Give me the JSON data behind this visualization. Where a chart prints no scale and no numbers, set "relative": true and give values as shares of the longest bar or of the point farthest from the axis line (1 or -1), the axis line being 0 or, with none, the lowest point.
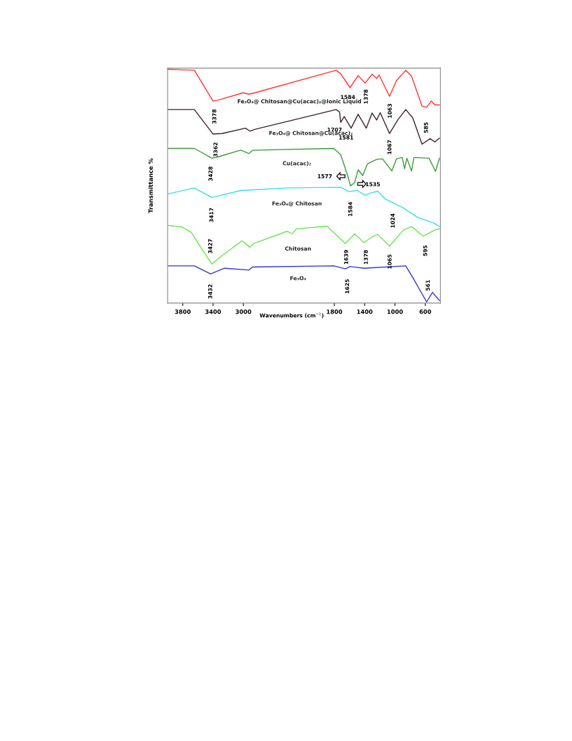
{
  "chart_data": {
    "type": "line",
    "relative": true,
    "xlabel": "Wavenumbers (cm$^{−1}$)",
    "ylabel": "Transmittance %",
    "xlim": [
      4000,
      400
    ],
    "xticks": [
      3800,
      3400,
      3000,
      1800,
      1400,
      1000,
      600
    ],
    "grid": false,
    "legend": false,
    "series": [
      {
        "name": "Fe₃O₄@ Chitosan@Cu(acac)₂@Ionic Liquid",
        "color": "#ff3333",
        "x": [
          4000,
          3647,
          3402,
          3340,
          3003,
          2926,
          2850,
          1777,
          1716,
          1593,
          1486,
          1394,
          1302,
          1241,
          1210,
          1072,
          980,
          858,
          781,
          643,
          582,
          520,
          474,
          413
        ],
        "values": [
          1.0,
          0.996,
          0.864,
          0.867,
          0.899,
          0.893,
          0.899,
          0.996,
          0.981,
          0.921,
          0.973,
          0.941,
          0.979,
          0.961,
          0.976,
          0.884,
          0.951,
          0.996,
          0.971,
          0.842,
          0.837,
          0.864,
          0.847,
          0.847
        ]
      },
      {
        "name": "Fe₃O₄@ Chitosan@Cu(acac)₂",
        "color": "#3d1f2a",
        "x": [
          4000,
          3647,
          3402,
          3279,
          2973,
          2911,
          2850,
          1777,
          1731,
          1716,
          1670,
          1578,
          1486,
          1379,
          1302,
          1241,
          1195,
          1072,
          965,
          858,
          766,
          643,
          536,
          474,
          413
        ],
        "values": [
          0.827,
          0.827,
          0.722,
          0.724,
          0.747,
          0.734,
          0.742,
          0.827,
          0.817,
          0.772,
          0.797,
          0.747,
          0.807,
          0.747,
          0.812,
          0.782,
          0.814,
          0.724,
          0.782,
          0.827,
          0.792,
          0.678,
          0.702,
          0.688,
          0.704
        ]
      },
      {
        "name": "Cu(acac)₂",
        "color": "#3a9a3a",
        "x": [
          4000,
          3647,
          3417,
          3340,
          3034,
          2926,
          2880,
          1807,
          1716,
          1624,
          1587,
          1532,
          1486,
          1425,
          1364,
          1241,
          1164,
          1042,
          980,
          904,
          873,
          843,
          781,
          750,
          551,
          465,
          413
        ],
        "values": [
          0.66,
          0.66,
          0.618,
          0.623,
          0.653,
          0.638,
          0.652,
          0.66,
          0.633,
          0.543,
          0.499,
          0.513,
          0.568,
          0.543,
          0.593,
          0.613,
          0.615,
          0.563,
          0.615,
          0.621,
          0.573,
          0.618,
          0.563,
          0.621,
          0.618,
          0.561,
          0.618
        ]
      },
      {
        "name": "Fe₃O₄@ Chitosan",
        "color": "#33e0e8",
        "x": [
          4000,
          3647,
          3417,
          3034,
          2421,
          1716,
          1609,
          1501,
          1394,
          1318,
          1226,
          1134,
          1042,
          889,
          704,
          490,
          413
        ],
        "values": [
          0.464,
          0.49,
          0.449,
          0.479,
          0.49,
          0.493,
          0.474,
          0.479,
          0.459,
          0.469,
          0.476,
          0.444,
          0.429,
          0.404,
          0.364,
          0.339,
          0.324
        ]
      },
      {
        "name": "Chitosan",
        "color": "#66e64d",
        "x": [
          4000,
          3810,
          3687,
          3564,
          3417,
          3279,
          3018,
          2917,
          2865,
          2421,
          2359,
          2298,
          1899,
          1654,
          1532,
          1409,
          1302,
          1226,
          1072,
          889,
          781,
          628,
          474,
          413
        ],
        "values": [
          0.329,
          0.322,
          0.299,
          0.235,
          0.163,
          0.2,
          0.263,
          0.235,
          0.251,
          0.304,
          0.293,
          0.314,
          0.326,
          0.251,
          0.293,
          0.255,
          0.28,
          0.29,
          0.24,
          0.309,
          0.324,
          0.283,
          0.309,
          0.314
        ]
      },
      {
        "name": "Fe₃O₄",
        "color": "#3333cc",
        "x": [
          4000,
          3647,
          3432,
          3248,
          2926,
          2880,
          1807,
          1654,
          1593,
          1409,
          858,
          766,
          582,
          505,
          413
        ],
        "values": [
          0.155,
          0.155,
          0.12,
          0.145,
          0.137,
          0.15,
          0.155,
          0.142,
          0.152,
          0.145,
          0.155,
          0.105,
          0.0,
          0.041,
          0.006
        ]
      }
    ],
    "annotations": [
      {
        "text": "3378",
        "x": 3378,
        "y": 0.864
      },
      {
        "text": "1584",
        "x": 1584,
        "y": 0.921
      },
      {
        "text": "1378",
        "x": 1378,
        "y": 0.941
      },
      {
        "text": "1063",
        "x": 1063,
        "y": 0.884
      },
      {
        "text": "3362",
        "x": 3362,
        "y": 0.722
      },
      {
        "text": "1707",
        "x": 1707,
        "y": 0.772
      },
      {
        "text": "1581",
        "x": 1581,
        "y": 0.747
      },
      {
        "text": "1067",
        "x": 1067,
        "y": 0.724
      },
      {
        "text": "585",
        "x": 585,
        "y": 0.678
      },
      {
        "text": "3428",
        "x": 3428,
        "y": 0.618
      },
      "1577",
      "1535",
      {
        "text": "3417",
        "x": 3417,
        "y": 0.449
      },
      {
        "text": "1584",
        "x": 1584,
        "y": 0.474
      },
      {
        "text": "1024",
        "x": 1024,
        "y": 0.437
      },
      "3427",
      {
        "text": "1639",
        "x": 1639,
        "y": 0.251
      },
      {
        "text": "1378",
        "x": 1378,
        "y": 0.255
      },
      {
        "text": "1065",
        "x": 1065,
        "y": 0.24
      },
      {
        "text": "595",
        "x": 595,
        "y": 0.283
      },
      {
        "text": "3432",
        "x": 3432,
        "y": 0.12
      },
      {
        "text": "1625",
        "x": 1625,
        "y": 0.142
      },
      {
        "text": "561",
        "x": 561,
        "y": 0.0
      }
    ]
  }
}
